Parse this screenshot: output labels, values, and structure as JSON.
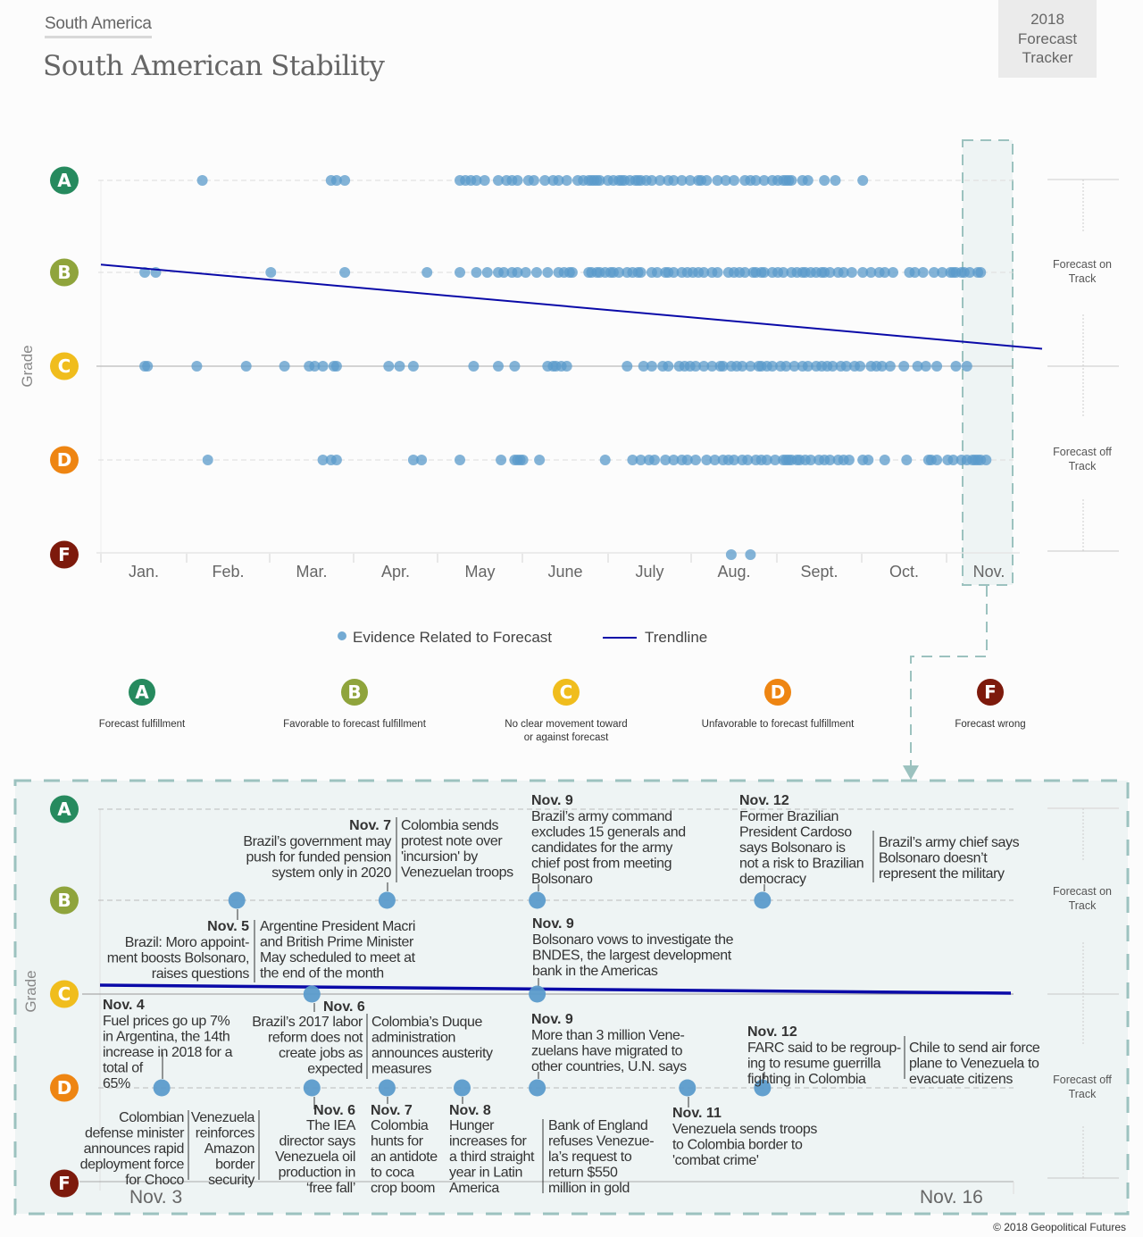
{
  "header": {
    "kicker": "South America",
    "title": "South American Stability",
    "badge_lines": [
      "2018",
      "Forecast",
      "Tracker"
    ]
  },
  "colors": {
    "grade_A": "#268a5e",
    "grade_B": "#8fa43c",
    "grade_C": "#f0bd1d",
    "grade_D": "#ee8512",
    "grade_F": "#7d1a0c",
    "dot": "#5b9bcb",
    "trendline": "#0a0aa8",
    "highlight_border": "#9cc2bf",
    "highlight_fill": "#eef4f4"
  },
  "side_labels": {
    "on_track": [
      "Forecast on",
      "Track"
    ],
    "off_track": [
      "Forecast off",
      "Track"
    ]
  },
  "legend": {
    "evidence": "Evidence Related to Forecast",
    "trendline": "Trendline"
  },
  "grade_legend": [
    {
      "grade": "A",
      "lines": [
        "Forecast fulfillment"
      ]
    },
    {
      "grade": "B",
      "lines": [
        "Favorable to forecast fulfillment"
      ]
    },
    {
      "grade": "C",
      "lines": [
        "No clear movement toward",
        "or against forecast"
      ]
    },
    {
      "grade": "D",
      "lines": [
        "Unfavorable to forecast fulfillment"
      ]
    },
    {
      "grade": "F",
      "lines": [
        "Forecast wrong"
      ]
    }
  ],
  "copyright": "© 2018 Geopolitical Futures",
  "chart_data": [
    {
      "type": "scatter",
      "title": "South American Stability",
      "ylabel": "Grade",
      "xlabel": "",
      "y_categories": [
        "A",
        "B",
        "C",
        "D",
        "F"
      ],
      "x_unit": "day of year 2018",
      "xlim": [
        1,
        334
      ],
      "x_tick_labels": [
        "Jan.",
        "Feb.",
        "Mar.",
        "Apr.",
        "May",
        "June",
        "July",
        "Aug.",
        "Sept.",
        "Oct.",
        "Nov."
      ],
      "x_tick_days": [
        1,
        32,
        60,
        91,
        121,
        152,
        182,
        213,
        244,
        274,
        305
      ],
      "highlight_range": {
        "label": "Nov.",
        "from_day": 311,
        "to_day": 330
      },
      "series": [
        {
          "name": "Evidence Related to Forecast",
          "points": {
            "A": [
              38,
              85,
              87,
              90,
              132,
              134,
              136,
              138,
              141,
              146,
              149,
              151,
              153,
              157,
              159,
              163,
              166,
              168,
              171,
              175,
              177,
              179,
              180,
              181,
              182,
              183,
              186,
              188,
              190,
              191,
              192,
              194,
              196,
              197,
              198,
              200,
              202,
              205,
              208,
              210,
              213,
              216,
              219,
              220,
              222,
              226,
              229,
              232,
              236,
              238,
              240,
              243,
              246,
              248,
              250,
              251,
              252,
              253,
              257,
              259,
              265,
              269,
              279
            ],
            "B": [
              17,
              21,
              63,
              90,
              120,
              132,
              138,
              142,
              146,
              148,
              151,
              153,
              156,
              160,
              164,
              168,
              170,
              172,
              173,
              179,
              180,
              182,
              183,
              185,
              187,
              188,
              190,
              193,
              195,
              197,
              198,
              202,
              204,
              207,
              208,
              210,
              213,
              215,
              217,
              219,
              221,
              224,
              226,
              230,
              232,
              234,
              236,
              239,
              240,
              242,
              243,
              246,
              248,
              250,
              253,
              255,
              257,
              258,
              260,
              262,
              264,
              265,
              267,
              270,
              272,
              275,
              279,
              282,
              285,
              287,
              290,
              296,
              298,
              301,
              305,
              308,
              311,
              312,
              313,
              315,
              316,
              318,
              321,
              322
            ],
            "C": [
              17,
              18,
              36,
              54,
              68,
              77,
              79,
              82,
              86,
              87,
              106,
              110,
              115,
              137,
              146,
              152,
              164,
              166,
              167,
              169,
              171,
              193,
              199,
              202,
              206,
              208,
              212,
              214,
              216,
              218,
              221,
              224,
              227,
              228,
              231,
              233,
              235,
              238,
              241,
              242,
              244,
              246,
              249,
              251,
              254,
              257,
              259,
              262,
              264,
              266,
              268,
              271,
              273,
              276,
              278,
              282,
              284,
              286,
              289,
              294,
              299,
              302,
              306,
              313,
              317
            ],
            "D": [
              40,
              82,
              85,
              87,
              115,
              118,
              132,
              147,
              152,
              153,
              154,
              155,
              161,
              185,
              195,
              198,
              201,
              203,
              207,
              210,
              213,
              215,
              218,
              222,
              225,
              228,
              230,
              232,
              235,
              237,
              240,
              242,
              244,
              247,
              250,
              251,
              252,
              253,
              255,
              256,
              258,
              260,
              263,
              265,
              267,
              270,
              272,
              274,
              279,
              281,
              287,
              295,
              303,
              304,
              306,
              310,
              312,
              315,
              317,
              319,
              320,
              321,
              322,
              324
            ],
            "F": [
              231,
              238
            ]
          }
        },
        {
          "name": "Trendline",
          "type": "line",
          "start": {
            "day": 1,
            "grade_value": 3.1
          },
          "end": {
            "day": 344,
            "grade_value": 2.2
          },
          "grade_value_scale": "A=4, B=3, C=2, D=1, F=0"
        }
      ]
    },
    {
      "type": "scatter",
      "title": "November detail",
      "ylabel": "Grade",
      "y_categories": [
        "A",
        "B",
        "C",
        "D",
        "F"
      ],
      "xlim_labels": [
        "Nov. 3",
        "Nov. 16"
      ],
      "xlim": [
        3,
        16
      ],
      "trendline": {
        "start_grade_value": 2.09,
        "end_grade_value": 2.01
      },
      "events": [
        {
          "day": 5,
          "grade": "B",
          "side": "above",
          "date": "",
          "texts": [
            "Brazil's government may push for funded pension system only in 2020"
          ]
        },
        {
          "day": 7,
          "grade": "B",
          "side": "above",
          "date": "Nov. 7",
          "texts": [
            "Brazil’s government may push for funded pension system only in 2020",
            "Colombia sends protest note over 'incursion' by Venezuelan troops"
          ]
        },
        {
          "day": 9,
          "grade": "B",
          "side": "above",
          "date": "Nov. 9",
          "texts": [
            "Brazil’s army command excludes 15 generals and candidates for the army chief post from meeting Bolsonaro"
          ]
        },
        {
          "day": 12,
          "grade": "B",
          "side": "above",
          "date": "Nov. 12",
          "texts": [
            "Former Brazilian President Cardoso says Bolsonaro is not a risk to Brazilian democracy",
            "Brazil’s army chief says Bolsonaro doesn’t represent the military"
          ]
        },
        {
          "day": 5,
          "grade": "B",
          "side": "below",
          "date": "Nov. 5",
          "texts": [
            "Brazil: Moro appoint-ment boosts Bolsonaro, raises questions",
            "Argentine President Macri and British Prime Minister May scheduled to meet at the end of the month"
          ]
        },
        {
          "day": 9,
          "grade": "C",
          "side": "above",
          "date": "Nov. 9",
          "texts": [
            "Bolsonaro vows to investigate the BNDES, the largest development bank in the Americas"
          ]
        },
        {
          "day": 6,
          "grade": "C",
          "side": "below",
          "date": "Nov. 6",
          "texts": [
            "Brazil’s 2017 labor reform does not create jobs as expected",
            "Colombia’s Duque administration announces austerity measures"
          ]
        },
        {
          "day": 4,
          "grade": "D",
          "side": "above",
          "date": "Nov. 4",
          "texts": [
            "Fuel prices go up 7% in Argentina, the 14th increase in 2018 for a total of 65%"
          ]
        },
        {
          "day": 6,
          "grade": "D",
          "side": "below",
          "date": "Nov. 6",
          "texts": [
            "The IEA director says Venezuela oil production in ‘free fall’"
          ]
        },
        {
          "day": 4,
          "grade": "D",
          "side": "below",
          "date": "",
          "texts": [
            "Colombian defense minister announces rapid deployment force for Choco",
            "Venezuela reinforces Amazon border security"
          ]
        },
        {
          "day": 7,
          "grade": "D",
          "side": "below",
          "date": "Nov. 7",
          "texts": [
            "Colombia hunts for an antidote to coca crop boom"
          ]
        },
        {
          "day": 8,
          "grade": "D",
          "side": "below",
          "date": "Nov. 8",
          "texts": [
            "Hunger increases for a third straight year in Latin America"
          ]
        },
        {
          "day": 9,
          "grade": "D",
          "side": "above",
          "date": "Nov. 9",
          "texts": [
            "More than 3 million Vene-zuelans have migrated to other countries, U.N. says"
          ]
        },
        {
          "day": 9,
          "grade": "D",
          "side": "below",
          "date": "",
          "texts": [
            "Bank of England refuses Venezue-la’s request to return $550 million in gold"
          ]
        },
        {
          "day": 11,
          "grade": "D",
          "side": "below",
          "date": "Nov. 11",
          "texts": [
            "Venezuela sends troops to Colombia border to 'combat crime'"
          ]
        },
        {
          "day": 12,
          "grade": "D",
          "side": "above",
          "date": "Nov. 12",
          "texts": [
            "FARC said to be regroup-ing to resume guerrilla fighting in Colombia",
            "Chile to send air force plane to Venezuela to evacuate citizens"
          ]
        }
      ],
      "dots": [
        {
          "day": 5,
          "grade": "B"
        },
        {
          "day": 7,
          "grade": "B"
        },
        {
          "day": 9,
          "grade": "B"
        },
        {
          "day": 12,
          "grade": "B"
        },
        {
          "day": 6,
          "grade": "C"
        },
        {
          "day": 9,
          "grade": "C"
        },
        {
          "day": 4,
          "grade": "D"
        },
        {
          "day": 6,
          "grade": "D"
        },
        {
          "day": 7,
          "grade": "D"
        },
        {
          "day": 8,
          "grade": "D"
        },
        {
          "day": 9,
          "grade": "D"
        },
        {
          "day": 11,
          "grade": "D"
        },
        {
          "day": 12,
          "grade": "D"
        }
      ],
      "annotation_blocks": [
        {
          "key": "nov7_B",
          "date": "Nov. 7",
          "left": [
            "Brazil’s government may",
            "push for funded pension",
            "system only in 2020"
          ],
          "right": [
            "Colombia sends",
            "protest note over",
            "'incursion' by",
            "Venezuelan troops"
          ]
        },
        {
          "key": "nov9_B",
          "date": "Nov. 9",
          "lines": [
            "Brazil’s army command",
            "excludes 15 generals and",
            "candidates for the army",
            "chief post from meeting",
            "Bolsonaro"
          ]
        },
        {
          "key": "nov12_B",
          "date": "Nov. 12",
          "left": [
            "Former Brazilian",
            "President Cardoso",
            "says Bolsonaro is",
            "not a risk to Brazilian",
            "democracy"
          ],
          "right": [
            "Brazil’s army chief says",
            "Bolsonaro doesn’t",
            "represent the military"
          ]
        },
        {
          "key": "nov5_B",
          "date": "Nov. 5",
          "left": [
            "Brazil: Moro appoint-",
            "ment boosts Bolsonaro,",
            "raises questions"
          ],
          "right": [
            "Argentine President Macri",
            "and British Prime Minister",
            "May scheduled to meet at",
            "the end of the month"
          ]
        },
        {
          "key": "nov9_C",
          "date": "Nov. 9",
          "lines": [
            "Bolsonaro vows to investigate the",
            "BNDES, the largest development",
            "bank in the Americas"
          ]
        },
        {
          "key": "nov4_D",
          "date": "Nov. 4",
          "lines": [
            "Fuel prices go up 7%",
            "in Argentina, the 14th",
            "increase in 2018 for a",
            "total of",
            "65%"
          ]
        },
        {
          "key": "nov6_C",
          "date": "Nov. 6",
          "left": [
            "Brazil’s 2017 labor",
            "reform does not",
            "create jobs as",
            "expected"
          ],
          "right": [
            "Colombia’s Duque",
            "administration",
            "announces austerity",
            "measures"
          ]
        },
        {
          "key": "nov9_D",
          "date": "Nov. 9",
          "lines": [
            "More than 3 million Vene-",
            "zuelans have migrated to",
            "other countries, U.N. says"
          ]
        },
        {
          "key": "nov12_D",
          "date": "Nov. 12",
          "left": [
            "FARC said to be regroup-",
            "ing to resume guerrilla",
            "fighting in Colombia"
          ],
          "right": [
            "Chile to send air force",
            "plane to Venezuela to",
            "evacuate citizens"
          ]
        },
        {
          "key": "nov4_Dbelow",
          "date": "",
          "left": [
            "Colombian",
            "defense minister",
            "announces rapid",
            "deployment force",
            "for Choco"
          ],
          "right": [
            "Venezuela",
            "reinforces",
            "Amazon",
            "border",
            "security"
          ]
        },
        {
          "key": "nov6_D",
          "date": "Nov. 6",
          "lines": [
            "The IEA",
            "director says",
            "Venezuela oil",
            "production in",
            "‘free fall’"
          ]
        },
        {
          "key": "nov7_D",
          "date": "Nov. 7",
          "lines": [
            "Colombia",
            "hunts for",
            "an antidote",
            "to coca",
            "crop boom"
          ]
        },
        {
          "key": "nov8_D",
          "date": "Nov. 8",
          "lines": [
            "Hunger",
            "increases for",
            "a third straight",
            "year in Latin",
            "America"
          ]
        },
        {
          "key": "nov9_Dbelow",
          "date": "",
          "lines": [
            "Bank of England",
            "refuses Venezue-",
            "la’s request to",
            "return $550",
            "million in gold"
          ]
        },
        {
          "key": "nov11_D",
          "date": "Nov. 11",
          "lines": [
            " Venezuela sends troops",
            "to Colombia border to",
            "'combat crime'"
          ]
        }
      ]
    }
  ]
}
